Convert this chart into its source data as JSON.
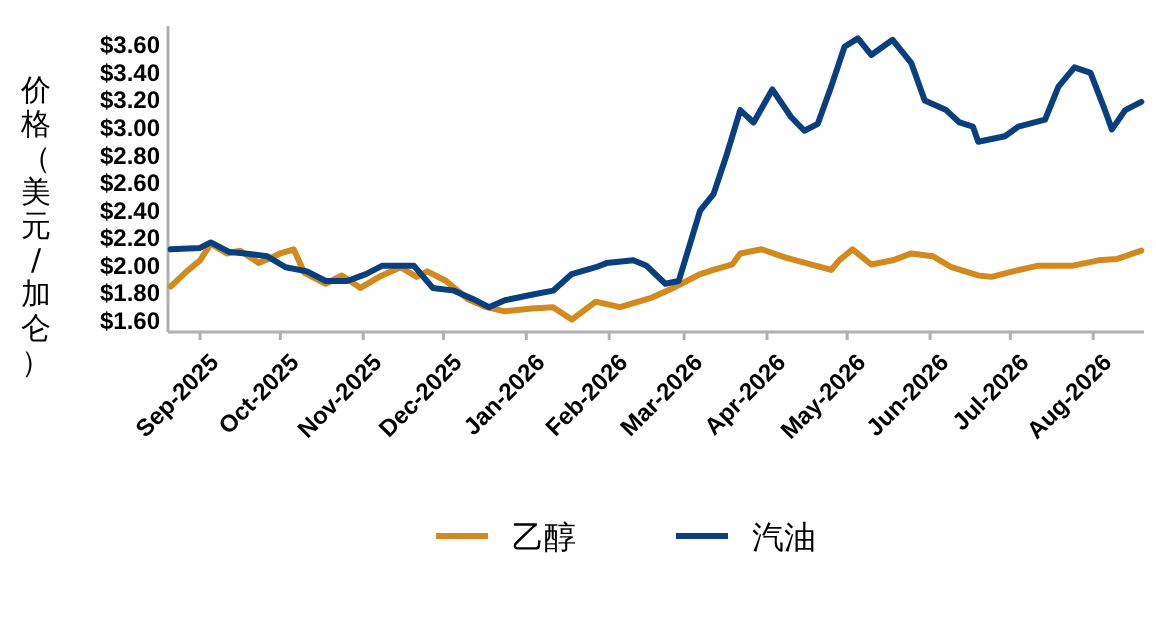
{
  "chart_data": {
    "type": "line",
    "ylabel": "价格（美元/加仑）",
    "xlim": [
      "2025-08-20",
      "2026-08-20"
    ],
    "xticks": [
      {
        "value": "2025-09-01",
        "label": "Sep-2025"
      },
      {
        "value": "2025-10-01",
        "label": "Oct-2025"
      },
      {
        "value": "2025-11-01",
        "label": "Nov-2025"
      },
      {
        "value": "2025-12-01",
        "label": "Dec-2025"
      },
      {
        "value": "2026-01-01",
        "label": "Jan-2026"
      },
      {
        "value": "2026-02-01",
        "label": "Feb-2026"
      },
      {
        "value": "2026-03-01",
        "label": "Mar-2026"
      },
      {
        "value": "2026-04-01",
        "label": "Apr-2026"
      },
      {
        "value": "2026-05-01",
        "label": "May-2026"
      },
      {
        "value": "2026-06-01",
        "label": "Jun-2026"
      },
      {
        "value": "2026-07-01",
        "label": "Jul-2026"
      },
      {
        "value": "2026-08-01",
        "label": "Aug-2026"
      }
    ],
    "ylim": [
      1.52,
      3.74
    ],
    "yticks": [
      {
        "value": 1.6,
        "label": "$1.60"
      },
      {
        "value": 1.8,
        "label": "$1.80"
      },
      {
        "value": 2.0,
        "label": "$2.00"
      },
      {
        "value": 2.2,
        "label": "$2.20"
      },
      {
        "value": 2.4,
        "label": "$2.40"
      },
      {
        "value": 2.6,
        "label": "$2.60"
      },
      {
        "value": 2.8,
        "label": "$2.80"
      },
      {
        "value": 3.0,
        "label": "$3.00"
      },
      {
        "value": 3.2,
        "label": "$3.20"
      },
      {
        "value": 3.4,
        "label": "$3.40"
      },
      {
        "value": 3.6,
        "label": "$3.60"
      }
    ],
    "grid": false,
    "legend": "bottom",
    "marker": "none",
    "line_style": "solid",
    "series": [
      {
        "name": "乙醇",
        "color": "#d4891c",
        "x": [
          "2025-08-21",
          "2025-08-27",
          "2025-09-01",
          "2025-09-05",
          "2025-09-11",
          "2025-09-16",
          "2025-09-23",
          "2025-10-01",
          "2025-10-06",
          "2025-10-10",
          "2025-10-18",
          "2025-10-24",
          "2025-10-31",
          "2025-11-07",
          "2025-11-15",
          "2025-11-21",
          "2025-11-25",
          "2025-12-02",
          "2025-12-10",
          "2025-12-17",
          "2025-12-24",
          "2026-01-03",
          "2026-01-11",
          "2026-01-18",
          "2026-01-27",
          "2026-02-05",
          "2026-02-17",
          "2026-02-25",
          "2026-03-02",
          "2026-03-07",
          "2026-03-12",
          "2026-03-19",
          "2026-03-22",
          "2026-03-30",
          "2026-04-08",
          "2026-04-25",
          "2026-04-28",
          "2026-05-03",
          "2026-05-10",
          "2026-05-18",
          "2026-05-25",
          "2026-06-02",
          "2026-06-09",
          "2026-06-19",
          "2026-06-24",
          "2026-07-02",
          "2026-07-11",
          "2026-07-24",
          "2026-08-03",
          "2026-08-10",
          "2026-08-19"
        ],
        "values": [
          1.85,
          1.96,
          2.04,
          2.16,
          2.09,
          2.11,
          2.02,
          2.09,
          2.12,
          1.95,
          1.87,
          1.93,
          1.84,
          1.92,
          1.99,
          1.92,
          1.96,
          1.89,
          1.76,
          1.7,
          1.67,
          1.69,
          1.7,
          1.61,
          1.74,
          1.7,
          1.77,
          1.84,
          1.89,
          1.94,
          1.97,
          2.01,
          2.09,
          2.12,
          2.06,
          1.97,
          2.04,
          2.12,
          2.01,
          2.04,
          2.09,
          2.07,
          1.99,
          1.93,
          1.92,
          1.96,
          2.0,
          2.0,
          2.04,
          2.05,
          2.11
        ]
      },
      {
        "name": "汽油",
        "color": "#0a3f7f",
        "x": [
          "2025-08-21",
          "2025-09-01",
          "2025-09-05",
          "2025-09-12",
          "2025-09-18",
          "2025-09-26",
          "2025-10-03",
          "2025-10-11",
          "2025-10-18",
          "2025-10-26",
          "2025-11-02",
          "2025-11-08",
          "2025-11-20",
          "2025-11-27",
          "2025-12-05",
          "2025-12-12",
          "2025-12-18",
          "2025-12-24",
          "2026-01-03",
          "2026-01-11",
          "2026-01-18",
          "2026-01-27",
          "2026-01-31",
          "2026-02-10",
          "2026-02-15",
          "2026-02-22",
          "2026-02-27",
          "2026-03-07",
          "2026-03-12",
          "2026-03-17",
          "2026-03-22",
          "2026-03-27",
          "2026-04-03",
          "2026-04-10",
          "2026-04-15",
          "2026-04-20",
          "2026-04-25",
          "2026-04-30",
          "2026-05-05",
          "2026-05-10",
          "2026-05-18",
          "2026-05-25",
          "2026-05-30",
          "2026-06-07",
          "2026-06-12",
          "2026-06-17",
          "2026-06-19",
          "2026-06-29",
          "2026-07-04",
          "2026-07-14",
          "2026-07-19",
          "2026-07-25",
          "2026-07-31",
          "2026-08-05",
          "2026-08-08",
          "2026-08-13",
          "2026-08-19"
        ],
        "values": [
          2.12,
          2.13,
          2.17,
          2.1,
          2.09,
          2.07,
          1.99,
          1.96,
          1.89,
          1.89,
          1.94,
          2.0,
          2.0,
          1.84,
          1.82,
          1.76,
          1.7,
          1.75,
          1.79,
          1.82,
          1.94,
          1.99,
          2.02,
          2.04,
          2.0,
          1.87,
          1.89,
          2.4,
          2.52,
          2.81,
          3.13,
          3.04,
          3.28,
          3.08,
          2.98,
          3.03,
          3.3,
          3.59,
          3.65,
          3.53,
          3.64,
          3.47,
          3.2,
          3.13,
          3.04,
          3.01,
          2.9,
          2.94,
          3.01,
          3.06,
          3.3,
          3.44,
          3.4,
          3.15,
          2.99,
          3.13,
          3.19
        ]
      }
    ]
  }
}
